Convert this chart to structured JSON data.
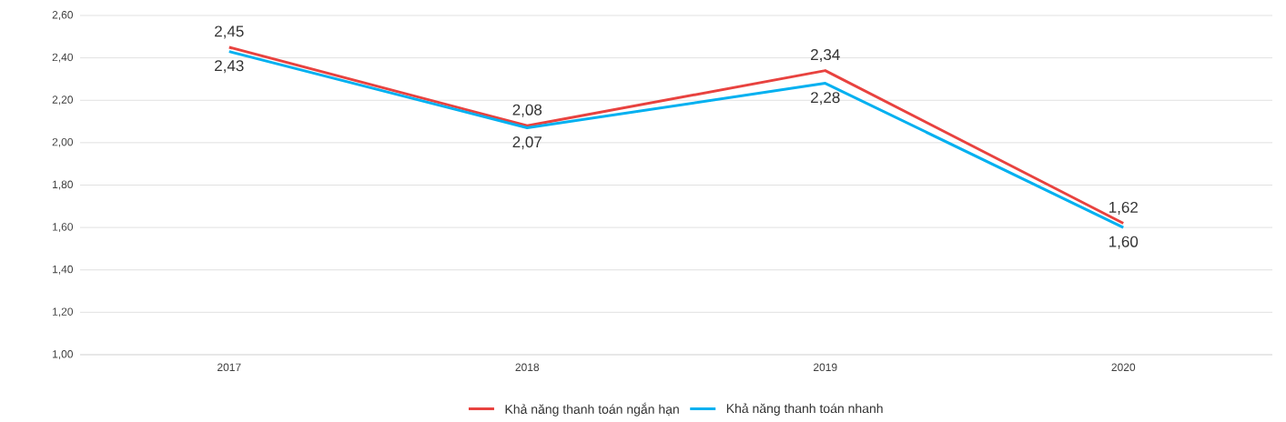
{
  "chart_data": {
    "type": "line",
    "categories": [
      "2017",
      "2018",
      "2019",
      "2020"
    ],
    "series": [
      {
        "name": "Khả năng thanh toán ngắn hạn",
        "color": "#e8423f",
        "values": [
          2.45,
          2.08,
          2.34,
          1.62
        ],
        "value_labels": [
          "2,45",
          "2,08",
          "2,34",
          "1,62"
        ]
      },
      {
        "name": "Khả năng thanh toán nhanh",
        "color": "#00b0f0",
        "values": [
          2.43,
          2.07,
          2.28,
          1.6
        ],
        "value_labels": [
          "2,43",
          "2,07",
          "2,28",
          "1,60"
        ]
      }
    ],
    "ylim": [
      1.0,
      2.6
    ],
    "yticks": [
      {
        "value": 1.0,
        "label": "1,00"
      },
      {
        "value": 1.2,
        "label": "1,20"
      },
      {
        "value": 1.4,
        "label": "1,40"
      },
      {
        "value": 1.6,
        "label": "1,60"
      },
      {
        "value": 1.8,
        "label": "1,80"
      },
      {
        "value": 2.0,
        "label": "2,00"
      },
      {
        "value": 2.2,
        "label": "2,20"
      },
      {
        "value": 2.4,
        "label": "2,40"
      },
      {
        "value": 2.6,
        "label": "2,60"
      }
    ],
    "grid": "y",
    "legend": "bottom"
  }
}
